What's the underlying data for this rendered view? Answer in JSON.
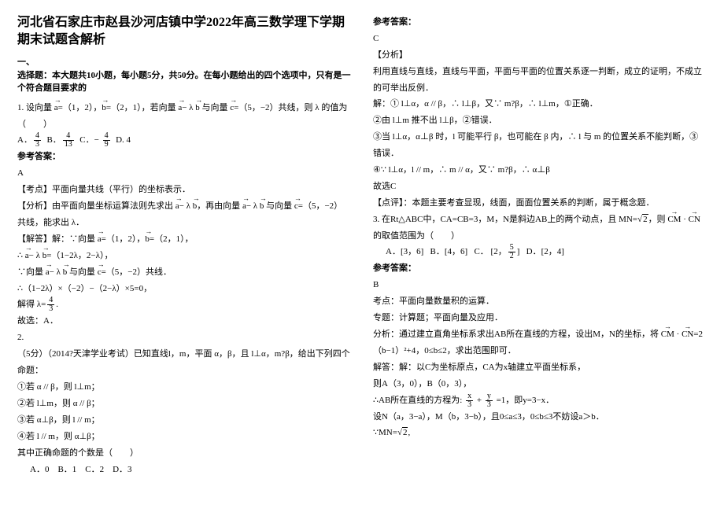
{
  "left": {
    "title": "河北省石家庄市赵县沙河店镇中学2022年高三数学理下学期期末试题含解析",
    "sec1_a": "一、",
    "sec1_b": "选择题：本大题共10小题，每小题5分，共50分。在每小题给出的四个选项中，只有是一个符合题目要求的",
    "q1": "1. 设向量 a=（1，2），b=（2，1），若向量 a− λ b 与向量 c=（5，−2）共线，则 λ 的值为（　　）",
    "q1_optA_n": "4",
    "q1_optA_d": "3",
    "q1_optB_n": "4",
    "q1_optB_d": "13",
    "q1_optC_n": "4",
    "q1_optC_d": "9",
    "q1_optD": "D. 4",
    "ansLabel": "参考答案：",
    "q1_ans": "A",
    "kd": "【考点】平面向量共线（平行）的坐标表示．",
    "fx": "【分析】由平面向量坐标运算法则先求出 a− λ b，再由向量 a− λ b 与向量 c=（5，−2）共线，能求出 λ．",
    "jd1": "【解答】解：∵向量 a=（1，2），b=（2，1），",
    "jd2": "∴ a− λ b=（1−2λ，2−λ），",
    "jd3": "∵向量 a− λ b 与向量 c=（5，−2）共线．",
    "jd4": "∴（1−2λ）×（−2）−（2−λ）×5=0，",
    "jd5a": "解得 λ=",
    "jd5n": "4",
    "jd5d": "3",
    "jd5b": ".",
    "jd6": "故选：A．",
    "q2a": "2.",
    "q2b": "（5分）（2014?天津学业考试）已知直线l，m，平面 α，β，且 l⊥α，m?β，给出下列四个命题：",
    "c1": "①若 α // β，则 l⊥m；",
    "c2": "②若 l⊥m，则 α // β；",
    "c3": "③若 α⊥β，则 l // m；",
    "c4": "④若 l // m，则 α⊥β；",
    "q2c": "其中正确命题的个数是（　　）",
    "q2opts": "A．0　B．1　C．2　D．3"
  },
  "right": {
    "ansLabel": "参考答案：",
    "a2": "C",
    "fx_l": "【分析】",
    "fx_t": "利用直线与直线，直线与平面，平面与平面的位置关系逐一判断，成立的证明，不成立的可举出反例．",
    "s1": "解：① l⊥α，α // β，∴ l⊥β，又∵ m?β，∴ l⊥m，①正确．",
    "s2": "②由 l⊥m 推不出 l⊥β，②错误．",
    "s3": "③当 l⊥α，α⊥β 时，l 可能平行 β，也可能在 β 内，∴ l 与 m 的位置关系不能判断，③错误．",
    "s4": "④∵ l⊥α，l // m，∴ m // α，又∵ m?β，∴ α⊥β",
    "s5": "故选C",
    "dp": "【点评】：本题主要考查显现，线面，面面位置关系的判断，属于概念题．",
    "q3a": "3. 在Rt△ABC中，CA=CB=3，M，N是斜边AB上的两个动点，且 MN=",
    "q3sqrt": "2",
    "q3b": "，则 CM · CN 的取值范围为（　　）",
    "q3A": "A．[3，6]",
    "q3B": "B．[4，6]",
    "q3Cl": "C．",
    "q3Cn": "5",
    "q3Cd": "2",
    "q3D": "D．[2，4]",
    "a3": "B",
    "kd3": "考点：平面向量数量积的运算．",
    "zt3": "专题：计算题；平面向量及应用．",
    "fx3a": "分析：通过建立直角坐标系求出AB所在直线的方程，设出M，N的坐标，将 CM · CN=2（b−1）²+4，0≤b≤2，求出范围即可．",
    "jd3a": "解答：解：以C为坐标原点，CA为x轴建立平面坐标系，",
    "jd3b": "则A（3，0），B（0，3），",
    "jd3c_a": "∴AB所在直线的方程为:",
    "jd3c_xn": "x",
    "jd3c_xd": "3",
    "jd3c_plus": "+",
    "jd3c_yn": "y",
    "jd3c_yd": "3",
    "jd3c_b": "=1，即y=3−x．",
    "jd3d": "设N（a，3−a），M（b，3−b），且0≤a≤3，0≤b≤3不妨设a＞b．",
    "jd3e_a": "∵MN=",
    "jd3e_sqrt": "2",
    "jd3e_b": ","
  },
  "colors": {
    "text": "#000000",
    "bg": "#ffffff"
  }
}
